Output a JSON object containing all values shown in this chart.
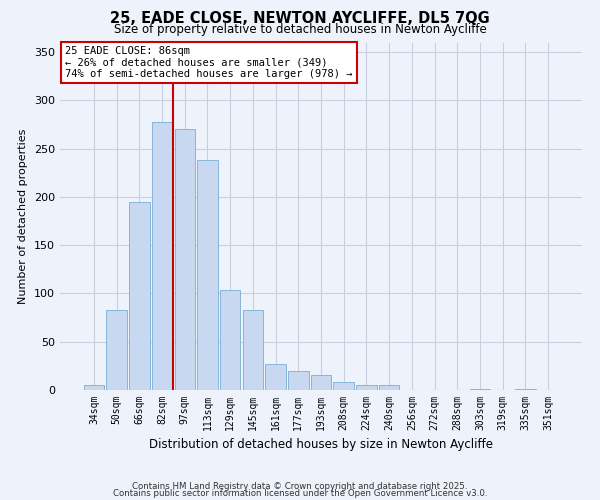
{
  "title": "25, EADE CLOSE, NEWTON AYCLIFFE, DL5 7QG",
  "subtitle": "Size of property relative to detached houses in Newton Aycliffe",
  "xlabel": "Distribution of detached houses by size in Newton Aycliffe",
  "ylabel": "Number of detached properties",
  "bar_labels": [
    "34sqm",
    "50sqm",
    "66sqm",
    "82sqm",
    "97sqm",
    "113sqm",
    "129sqm",
    "145sqm",
    "161sqm",
    "177sqm",
    "193sqm",
    "208sqm",
    "224sqm",
    "240sqm",
    "256sqm",
    "272sqm",
    "288sqm",
    "303sqm",
    "319sqm",
    "335sqm",
    "351sqm"
  ],
  "bar_values": [
    5,
    83,
    195,
    278,
    270,
    238,
    104,
    83,
    27,
    20,
    16,
    8,
    5,
    5,
    0,
    0,
    0,
    1,
    0,
    1,
    0
  ],
  "bar_color": "#c8d8f0",
  "bar_edge_color": "#7aafd4",
  "vline_x": 3.5,
  "vline_color": "#cc0000",
  "ylim": [
    0,
    360
  ],
  "yticks": [
    0,
    50,
    100,
    150,
    200,
    250,
    300,
    350
  ],
  "annotation_line1": "25 EADE CLOSE: 86sqm",
  "annotation_line2": "← 26% of detached houses are smaller (349)",
  "annotation_line3": "74% of semi-detached houses are larger (978) →",
  "footer_line1": "Contains HM Land Registry data © Crown copyright and database right 2025.",
  "footer_line2": "Contains public sector information licensed under the Open Government Licence v3.0.",
  "background_color": "#eef2fb",
  "grid_color": "#c8d0e0"
}
